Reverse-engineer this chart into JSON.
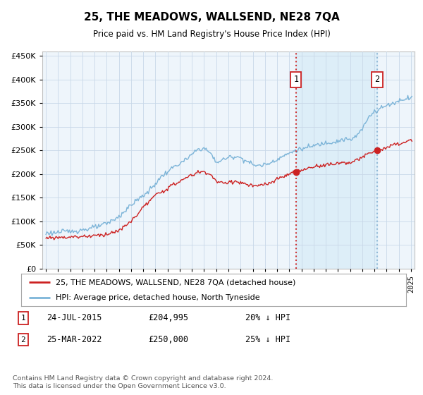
{
  "title": "25, THE MEADOWS, WALLSEND, NE28 7QA",
  "subtitle": "Price paid vs. HM Land Registry's House Price Index (HPI)",
  "ytick_vals": [
    0,
    50000,
    100000,
    150000,
    200000,
    250000,
    300000,
    350000,
    400000,
    450000
  ],
  "ylim": [
    0,
    460000
  ],
  "xlim_start": 1994.7,
  "xlim_end": 2025.3,
  "sale1_date": 2015.55,
  "sale1_price": 204995,
  "sale2_date": 2022.22,
  "sale2_price": 250000,
  "hpi_color": "#7cb4d8",
  "price_color": "#cc2222",
  "vline1_color": "#cc2222",
  "vline2_color": "#8ab4d4",
  "shade_color": "#ddeef8",
  "legend1": "25, THE MEADOWS, WALLSEND, NE28 7QA (detached house)",
  "legend2": "HPI: Average price, detached house, North Tyneside",
  "note1_label": "1",
  "note1_date": "24-JUL-2015",
  "note1_price": "£204,995",
  "note1_pct": "20% ↓ HPI",
  "note2_label": "2",
  "note2_date": "25-MAR-2022",
  "note2_price": "£250,000",
  "note2_pct": "25% ↓ HPI",
  "footer": "Contains HM Land Registry data © Crown copyright and database right 2024.\nThis data is licensed under the Open Government Licence v3.0.",
  "bg_color": "#ffffff",
  "plot_bg": "#eef5fb"
}
